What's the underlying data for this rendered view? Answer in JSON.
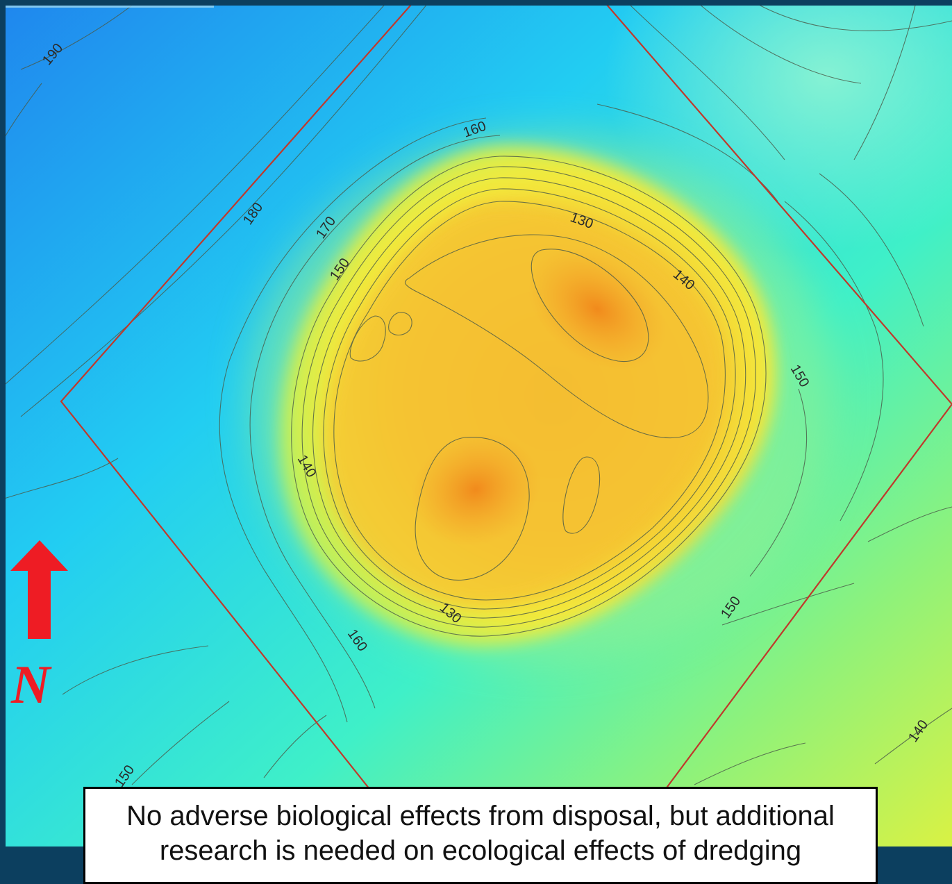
{
  "map": {
    "contour_labels": [
      "190",
      "180",
      "170",
      "160",
      "150",
      "130",
      "140",
      "150",
      "140",
      "150",
      "160",
      "130",
      "150",
      "140"
    ],
    "north_arrow": {
      "letter": "N",
      "icon": "north-arrow-icon"
    },
    "colors": {
      "deep_blue": "#1f8cf0",
      "cyan": "#26e6ee",
      "green": "#7df07a",
      "yellow": "#f6f03e",
      "orange": "#f29a22",
      "boundary_red": "#c0392b",
      "arrow_red": "#ee1c24"
    }
  },
  "caption": {
    "text": "No adverse biological effects from disposal, but additional research is needed on ecological effects of dredging"
  }
}
